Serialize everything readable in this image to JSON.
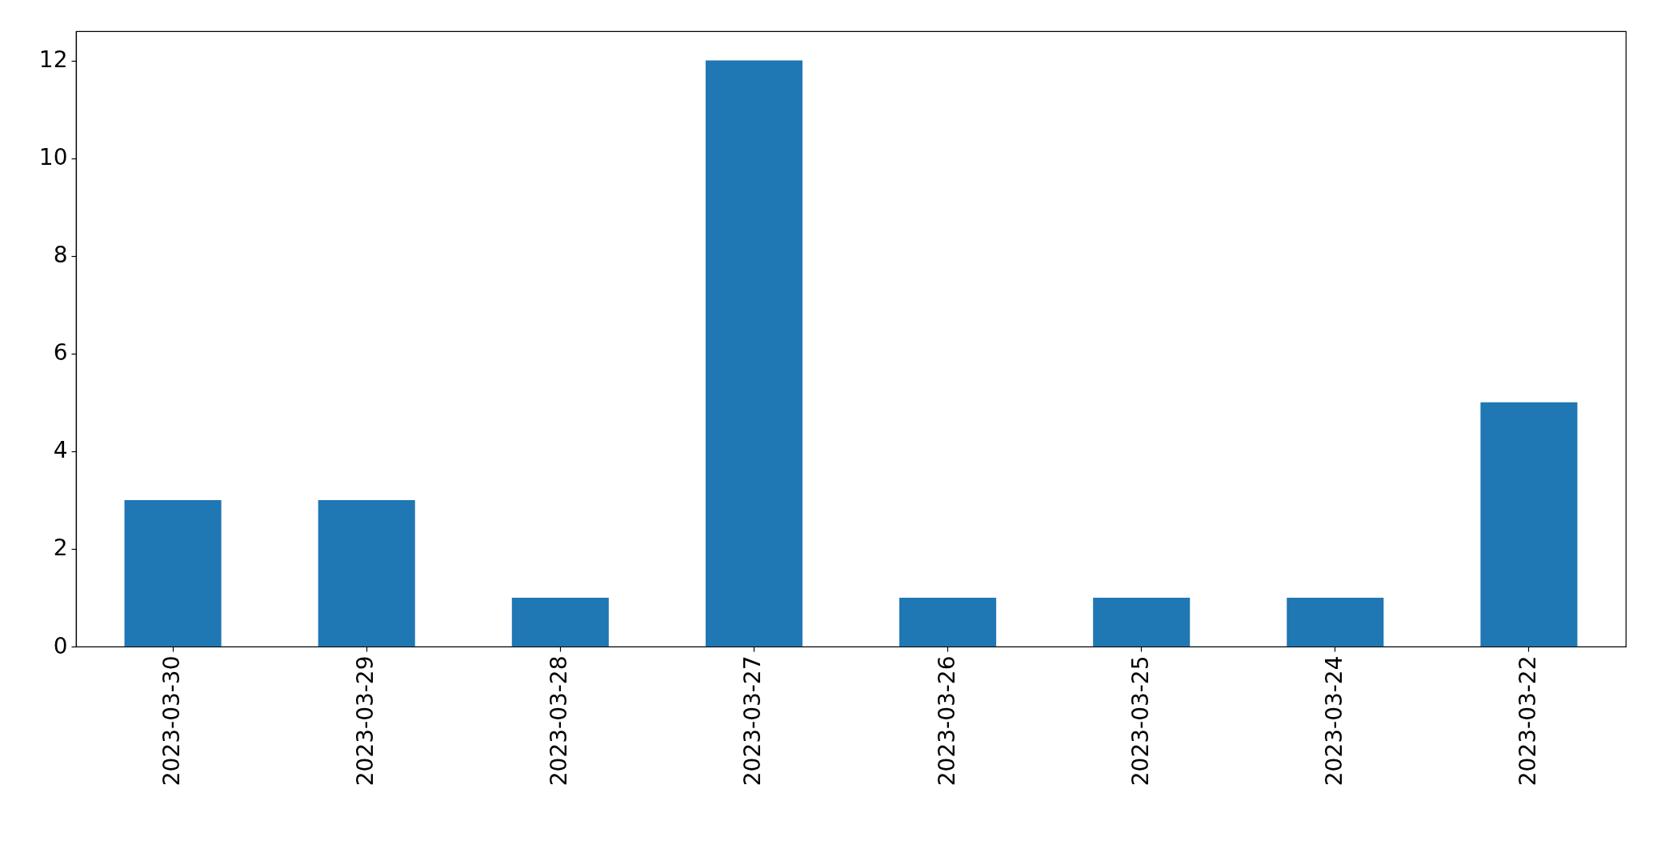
{
  "chart_data": {
    "type": "bar",
    "categories": [
      "2023-03-30",
      "2023-03-29",
      "2023-03-28",
      "2023-03-27",
      "2023-03-26",
      "2023-03-25",
      "2023-03-24",
      "2023-03-22"
    ],
    "values": [
      3,
      3,
      1,
      12,
      1,
      1,
      1,
      5
    ],
    "color": "#1f77b4",
    "ylim": [
      0,
      12.6
    ],
    "yticks": [
      0,
      2,
      4,
      6,
      8,
      10,
      12
    ]
  }
}
